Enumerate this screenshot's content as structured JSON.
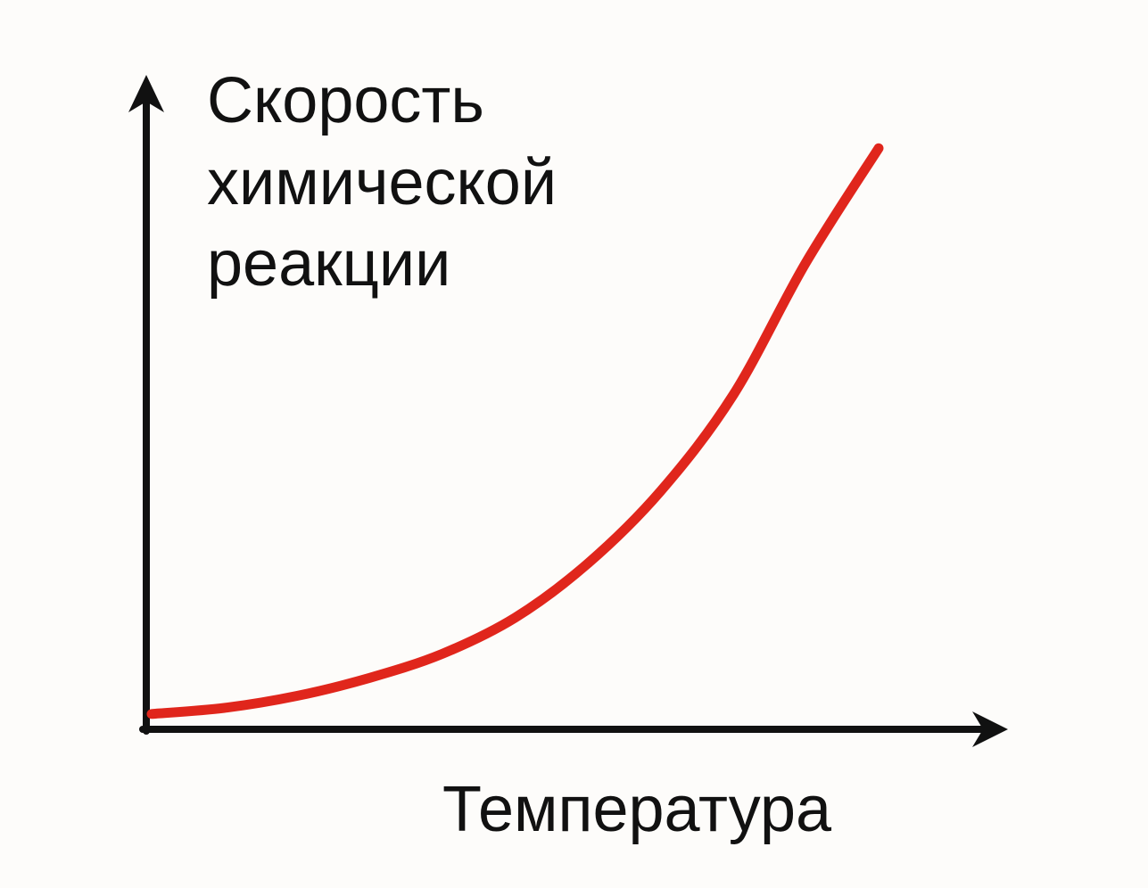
{
  "colors": {
    "background": "#fdfcfa",
    "axis": "#111111",
    "curve": "#e0261c",
    "text": "#111111"
  },
  "chart_data": {
    "type": "line",
    "title": "",
    "xlabel": "Температура",
    "ylabel_lines": [
      "Скорость",
      "химической",
      "реакции"
    ],
    "ticks": "none",
    "grid": false,
    "legend": "none",
    "xlim": [
      0,
      1
    ],
    "ylim": [
      0,
      1
    ],
    "series": [
      {
        "x": [
          0,
          0.1,
          0.2,
          0.3,
          0.4,
          0.5,
          0.6,
          0.7,
          0.8,
          0.9,
          1.0
        ],
        "values": [
          0.03,
          0.04,
          0.06,
          0.09,
          0.13,
          0.19,
          0.28,
          0.4,
          0.56,
          0.78,
          0.97
        ]
      }
    ]
  }
}
